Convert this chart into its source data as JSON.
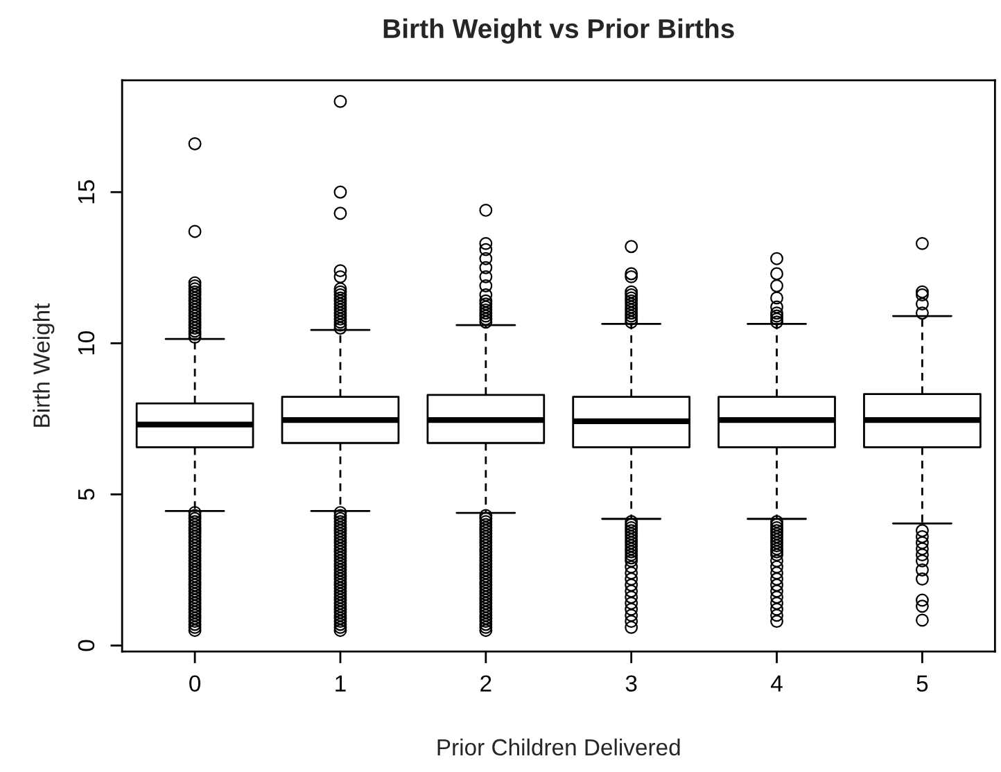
{
  "chart_data": {
    "type": "box",
    "title": "Birth Weight vs Prior Births",
    "xlabel": "Prior Children Delivered",
    "ylabel": "Birth Weight",
    "categories": [
      "0",
      "1",
      "2",
      "3",
      "4",
      "5"
    ],
    "ylim": [
      -0.2,
      18.7
    ],
    "yticks": [
      0,
      5,
      10,
      15
    ],
    "marker": "circle",
    "boxes": [
      {
        "low": 4.45,
        "q1": 6.56,
        "median": 7.31,
        "q3": 8.01,
        "high": 10.14,
        "outliers": [
          0.5,
          0.6,
          0.7,
          0.8,
          0.9,
          1.0,
          1.1,
          1.2,
          1.3,
          1.4,
          1.5,
          1.6,
          1.7,
          1.8,
          1.9,
          2.0,
          2.1,
          2.2,
          2.3,
          2.4,
          2.5,
          2.6,
          2.7,
          2.8,
          2.9,
          3.0,
          3.1,
          3.2,
          3.3,
          3.4,
          3.5,
          3.6,
          3.7,
          3.8,
          3.9,
          4.0,
          4.1,
          4.2,
          4.3,
          4.4,
          10.2,
          10.3,
          10.4,
          10.5,
          10.6,
          10.7,
          10.8,
          10.9,
          11.0,
          11.1,
          11.2,
          11.3,
          11.4,
          11.5,
          11.6,
          11.7,
          11.8,
          11.9,
          12.0,
          13.7,
          16.6
        ]
      },
      {
        "low": 4.45,
        "q1": 6.7,
        "median": 7.46,
        "q3": 8.23,
        "high": 10.44,
        "outliers": [
          0.5,
          0.6,
          0.7,
          0.8,
          0.9,
          1.0,
          1.1,
          1.2,
          1.3,
          1.4,
          1.5,
          1.6,
          1.7,
          1.8,
          1.9,
          2.0,
          2.1,
          2.2,
          2.3,
          2.4,
          2.5,
          2.6,
          2.7,
          2.8,
          2.9,
          3.0,
          3.1,
          3.2,
          3.3,
          3.4,
          3.5,
          3.6,
          3.7,
          3.8,
          3.9,
          4.0,
          4.1,
          4.2,
          4.3,
          4.4,
          10.5,
          10.6,
          10.7,
          10.8,
          10.9,
          11.0,
          11.1,
          11.2,
          11.3,
          11.4,
          11.5,
          11.6,
          11.7,
          11.8,
          12.2,
          12.4,
          14.3,
          15.0,
          18.0
        ]
      },
      {
        "low": 4.39,
        "q1": 6.7,
        "median": 7.46,
        "q3": 8.29,
        "high": 10.6,
        "outliers": [
          0.5,
          0.6,
          0.7,
          0.8,
          0.9,
          1.0,
          1.1,
          1.2,
          1.3,
          1.4,
          1.5,
          1.6,
          1.7,
          1.8,
          1.9,
          2.0,
          2.1,
          2.2,
          2.3,
          2.4,
          2.5,
          2.6,
          2.7,
          2.8,
          2.9,
          3.0,
          3.1,
          3.2,
          3.3,
          3.4,
          3.5,
          3.6,
          3.7,
          3.8,
          3.9,
          4.0,
          4.1,
          4.2,
          4.3,
          10.7,
          10.8,
          10.9,
          11.0,
          11.1,
          11.2,
          11.3,
          11.4,
          11.6,
          11.9,
          12.2,
          12.5,
          12.8,
          13.1,
          13.3,
          14.4
        ]
      },
      {
        "low": 4.19,
        "q1": 6.56,
        "median": 7.42,
        "q3": 8.23,
        "high": 10.64,
        "outliers": [
          0.6,
          0.8,
          1.0,
          1.2,
          1.4,
          1.6,
          1.8,
          2.0,
          2.2,
          2.4,
          2.6,
          2.8,
          2.9,
          3.0,
          3.1,
          3.2,
          3.3,
          3.4,
          3.5,
          3.6,
          3.7,
          3.8,
          3.9,
          4.0,
          4.1,
          10.7,
          10.8,
          10.9,
          11.0,
          11.1,
          11.2,
          11.3,
          11.4,
          11.5,
          11.6,
          11.7,
          12.2,
          12.3,
          13.2
        ]
      },
      {
        "low": 4.19,
        "q1": 6.56,
        "median": 7.46,
        "q3": 8.23,
        "high": 10.64,
        "outliers": [
          0.8,
          1.0,
          1.2,
          1.4,
          1.6,
          1.8,
          2.0,
          2.2,
          2.4,
          2.6,
          2.8,
          3.0,
          3.1,
          3.2,
          3.3,
          3.4,
          3.5,
          3.6,
          3.7,
          3.8,
          3.9,
          4.0,
          4.1,
          10.7,
          10.8,
          10.9,
          11.0,
          11.2,
          11.5,
          11.9,
          12.3,
          12.8
        ]
      },
      {
        "low": 4.04,
        "q1": 6.56,
        "median": 7.46,
        "q3": 8.32,
        "high": 10.9,
        "outliers": [
          0.84,
          1.3,
          1.5,
          2.2,
          2.5,
          2.8,
          3.0,
          3.2,
          3.4,
          3.6,
          3.8,
          11.0,
          11.3,
          11.6,
          11.7,
          13.3
        ]
      }
    ]
  }
}
